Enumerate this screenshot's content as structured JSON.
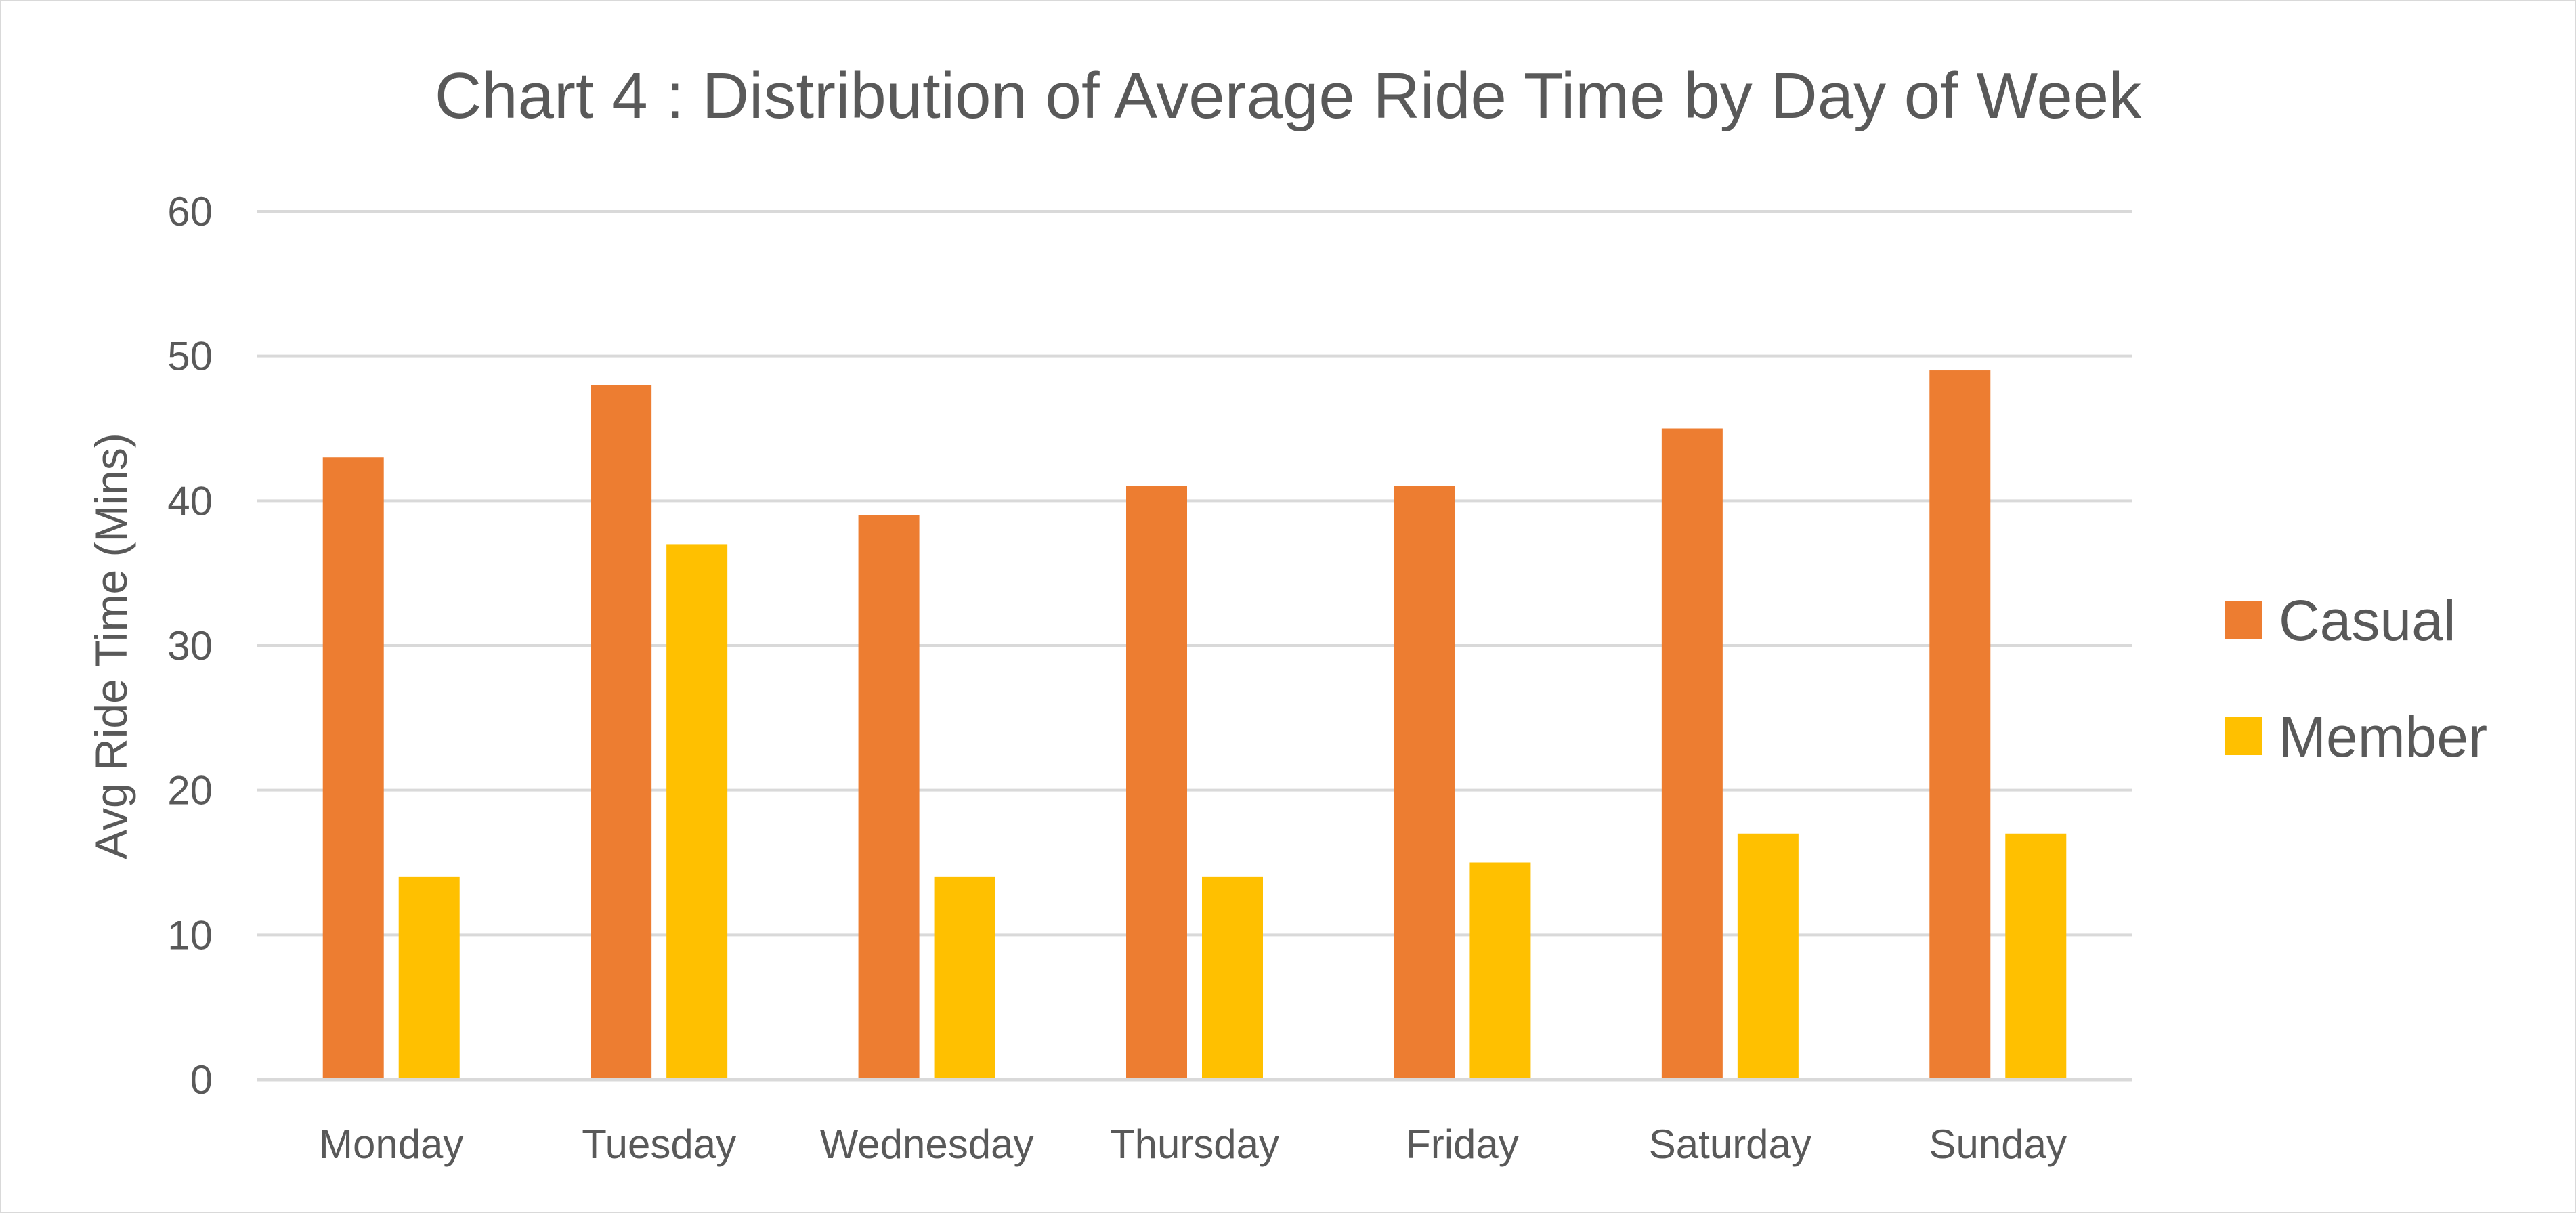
{
  "chart_data": {
    "type": "bar",
    "title": "Chart 4 : Distribution of Average Ride Time by Day of Week",
    "ylabel": "Avg Ride Time (Mins)",
    "xlabel": "",
    "ylim": [
      0,
      60
    ],
    "yticks": [
      0,
      10,
      20,
      30,
      40,
      50,
      60
    ],
    "grid": true,
    "legend_position": "right",
    "categories": [
      "Monday",
      "Tuesday",
      "Wednesday",
      "Thursday",
      "Friday",
      "Saturday",
      "Sunday"
    ],
    "series": [
      {
        "name": "Casual",
        "color": "#ED7D31",
        "values": [
          43,
          48,
          39,
          41,
          41,
          45,
          49
        ]
      },
      {
        "name": "Member",
        "color": "#FFC000",
        "values": [
          14,
          37,
          14,
          14,
          15,
          17,
          17
        ]
      }
    ]
  }
}
